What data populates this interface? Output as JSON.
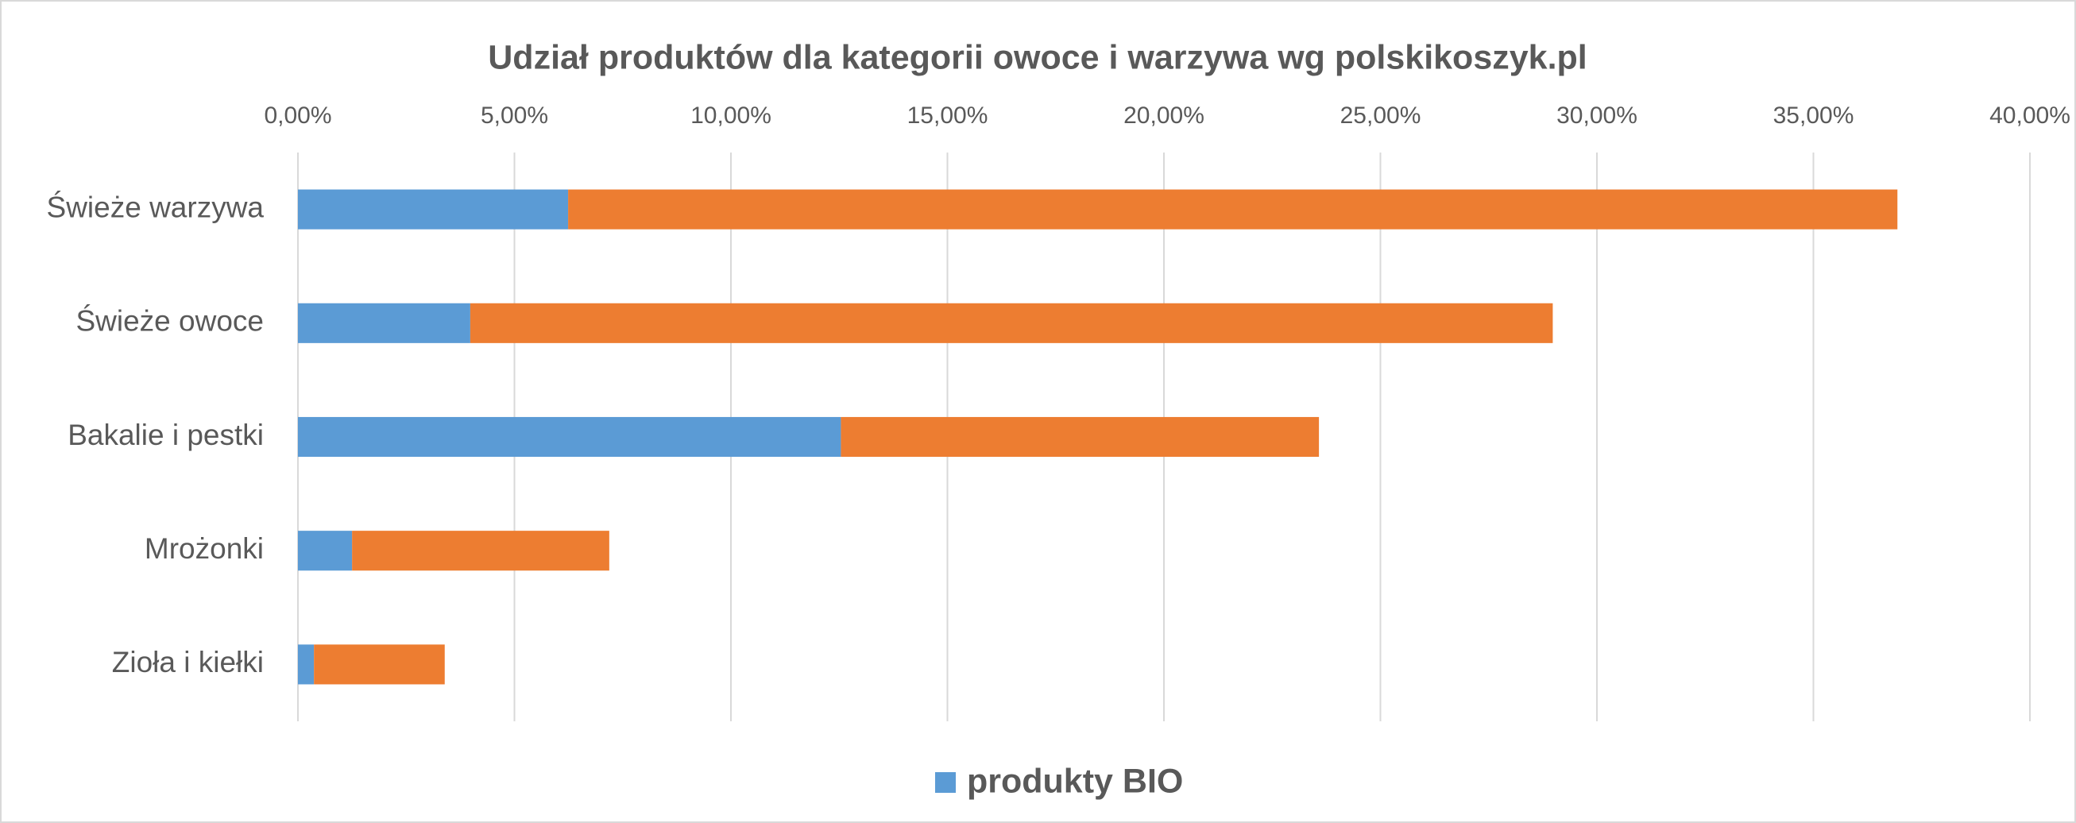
{
  "chart_data": {
    "type": "stacked_barh",
    "title": "Udział produktów dla kategorii owoce i warzywa wg polskikoszyk.pl",
    "categories": [
      "Świeże warzywa",
      "Świeże owoce",
      "Bakalie i pestki",
      "Mrożonki",
      "Zioła i kiełki"
    ],
    "series": [
      {
        "name": "produkty BIO",
        "color": "#5B9BD5",
        "values": [
          6.24,
          3.98,
          12.54,
          1.25,
          0.37
        ]
      },
      {
        "color": "#ED7D31",
        "values": [
          30.7,
          25.0,
          11.04,
          5.94,
          3.02
        ]
      }
    ],
    "xlim": [
      0,
      40
    ],
    "xticks": [
      {
        "value": 0,
        "label": "0,00%"
      },
      {
        "value": 5,
        "label": "5,00%"
      },
      {
        "value": 10,
        "label": "10,00%"
      },
      {
        "value": 15,
        "label": "15,00%"
      },
      {
        "value": 20,
        "label": "20,00%"
      },
      {
        "value": 25,
        "label": "25,00%"
      },
      {
        "value": 30,
        "label": "30,00%"
      },
      {
        "value": 35,
        "label": "35,00%"
      },
      {
        "value": 40,
        "label": "40,00%"
      }
    ],
    "grid": true,
    "legend": "bottom"
  }
}
